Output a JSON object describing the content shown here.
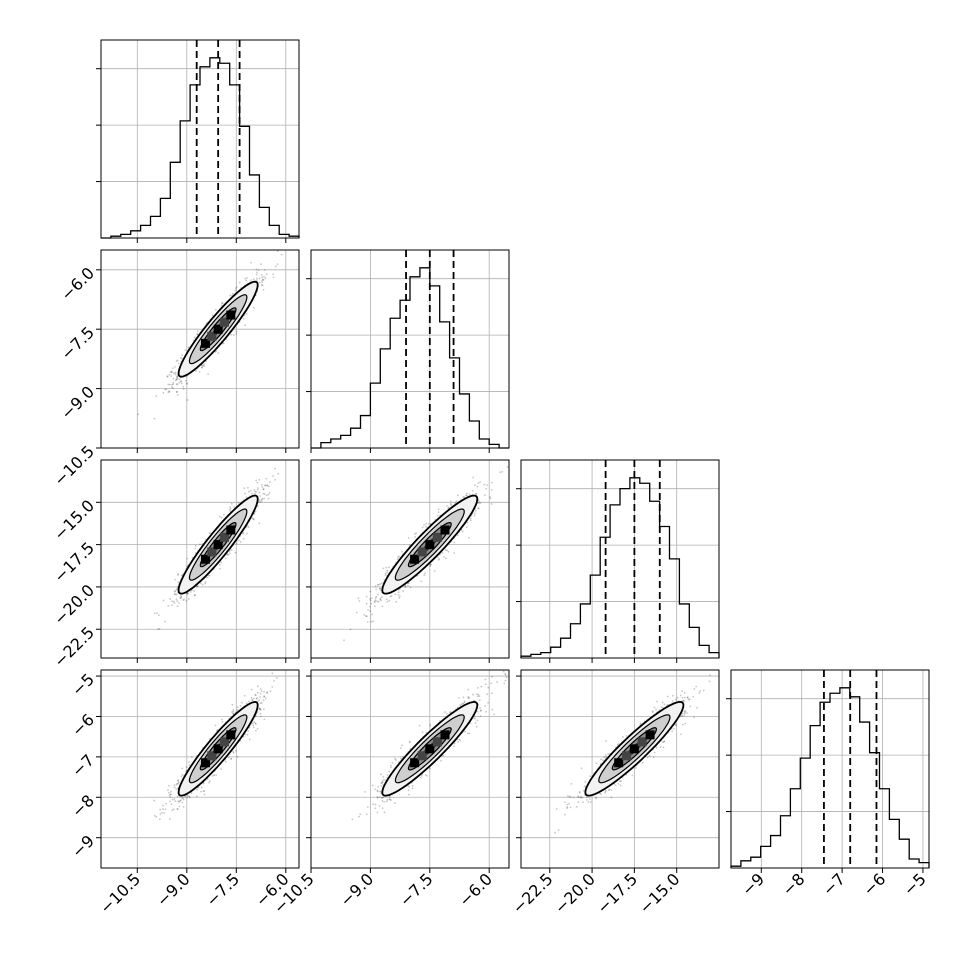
{
  "chart_data": {
    "type": "corner",
    "title": "",
    "n_params": 4,
    "params": [
      {
        "tick_values": [
          -10.5,
          -9.0,
          -7.5,
          -6.0
        ],
        "tick_labels": [
          "−10.5",
          "−9.0",
          "−7.5",
          "−6.0"
        ],
        "range": [
          -11.6,
          -5.6
        ]
      },
      {
        "tick_values": [
          -10.5,
          -9.0,
          -7.5,
          -6.0
        ],
        "tick_labels": [
          "−10.5",
          "−9.0",
          "−7.5",
          "−6.0"
        ],
        "range": [
          -10.5,
          -5.5
        ]
      },
      {
        "tick_values": [
          -22.5,
          -20.0,
          -17.5,
          -15.0
        ],
        "tick_labels": [
          "−22.5",
          "−20.0",
          "−17.5",
          "−15.0"
        ],
        "range": [
          -24.2,
          -12.5
        ]
      },
      {
        "tick_values": [
          -9,
          -8,
          -7,
          -6,
          -5
        ],
        "tick_labels": [
          "−9",
          "−8",
          "−7",
          "−6",
          "−5"
        ],
        "range": [
          -9.75,
          -4.85
        ]
      }
    ],
    "quantile_lines": [
      [
        -8.7,
        -8.05,
        -7.4
      ],
      [
        -8.1,
        -7.5,
        -6.9
      ],
      [
        -19.2,
        -17.5,
        -16.0
      ],
      [
        -7.45,
        -6.8,
        -6.15
      ]
    ],
    "histograms": [
      [
        0.0,
        0.01,
        0.02,
        0.04,
        0.07,
        0.12,
        0.22,
        0.42,
        0.65,
        0.85,
        0.95,
        1.0,
        0.97,
        0.85,
        0.62,
        0.35,
        0.17,
        0.07,
        0.02,
        0.01
      ],
      [
        0.0,
        0.03,
        0.05,
        0.07,
        0.11,
        0.18,
        0.36,
        0.55,
        0.72,
        0.82,
        0.95,
        1.0,
        0.9,
        0.7,
        0.5,
        0.3,
        0.15,
        0.05,
        0.02,
        0.0
      ],
      [
        0.01,
        0.02,
        0.03,
        0.06,
        0.11,
        0.19,
        0.3,
        0.46,
        0.67,
        0.85,
        0.94,
        1.0,
        0.97,
        0.87,
        0.73,
        0.55,
        0.3,
        0.17,
        0.07,
        0.03
      ],
      [
        0.01,
        0.04,
        0.06,
        0.12,
        0.18,
        0.29,
        0.44,
        0.61,
        0.79,
        0.92,
        0.97,
        1.0,
        0.95,
        0.81,
        0.64,
        0.44,
        0.27,
        0.16,
        0.05,
        0.03
      ]
    ],
    "joint": [
      {
        "row": 1,
        "col": 0,
        "center": [
          -8.05,
          -7.5
        ],
        "sigma": [
          0.6,
          0.6
        ],
        "rho": 0.93
      },
      {
        "row": 2,
        "col": 0,
        "center": [
          -8.05,
          -17.5
        ],
        "sigma": [
          0.6,
          1.45
        ],
        "rho": 0.93
      },
      {
        "row": 2,
        "col": 1,
        "center": [
          -7.5,
          -17.5
        ],
        "sigma": [
          0.6,
          1.45
        ],
        "rho": 0.93
      },
      {
        "row": 3,
        "col": 0,
        "center": [
          -8.05,
          -6.8
        ],
        "sigma": [
          0.6,
          0.58
        ],
        "rho": 0.93
      },
      {
        "row": 3,
        "col": 1,
        "center": [
          -7.5,
          -6.8
        ],
        "sigma": [
          0.6,
          0.58
        ],
        "rho": 0.93
      },
      {
        "row": 3,
        "col": 2,
        "center": [
          -17.5,
          -6.8
        ],
        "sigma": [
          1.45,
          0.58
        ],
        "rho": 0.93
      }
    ],
    "grid": true,
    "legend": "none"
  }
}
